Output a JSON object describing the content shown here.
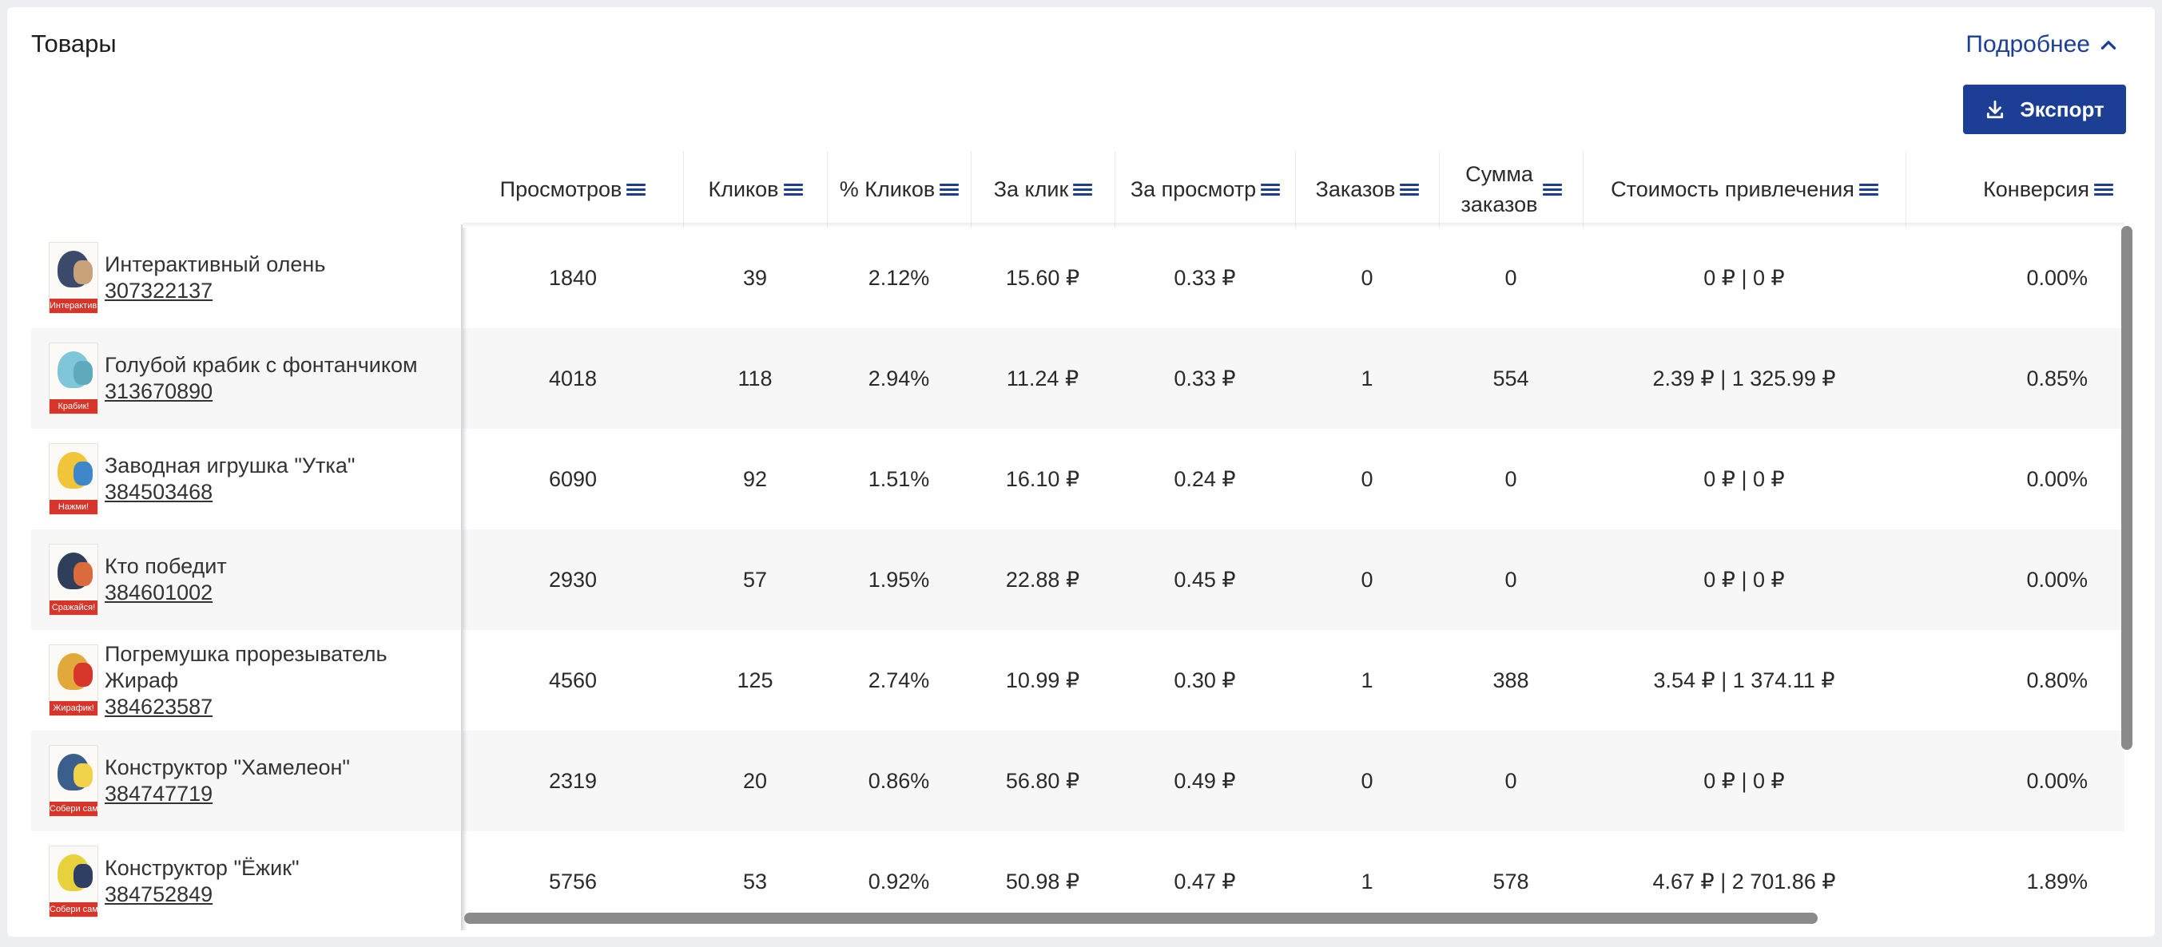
{
  "header": {
    "title": "Товары",
    "more_link": "Подробнее",
    "export_button": "Экспорт"
  },
  "columns": [
    {
      "label": "Просмотров"
    },
    {
      "label": "Кликов"
    },
    {
      "label": "% Кликов"
    },
    {
      "label": "За клик"
    },
    {
      "label": "За просмотр"
    },
    {
      "label": "Заказов"
    },
    {
      "label": "Сумма заказов"
    },
    {
      "label": "Стоимость привлечения"
    },
    {
      "label": "Конверсия"
    }
  ],
  "rows": [
    {
      "name": "Интерактивный олень",
      "sku": "307322137",
      "thumb_band": "Интерактивный",
      "views": "1840",
      "clicks": "39",
      "ctr": "2.12%",
      "per_click": "15.60 ₽",
      "per_view": "0.33 ₽",
      "orders": "0",
      "orders_sum": "0",
      "acq_cost": "0 ₽ | 0 ₽",
      "conversion": "0.00%"
    },
    {
      "name": "Голубой крабик с фонтанчиком",
      "sku": "313670890",
      "thumb_band": "Крабик!",
      "views": "4018",
      "clicks": "118",
      "ctr": "2.94%",
      "per_click": "11.24 ₽",
      "per_view": "0.33 ₽",
      "orders": "1",
      "orders_sum": "554",
      "acq_cost": "2.39 ₽ | 1 325.99 ₽",
      "conversion": "0.85%"
    },
    {
      "name": "Заводная игрушка \"Утка\"",
      "sku": "384503468",
      "thumb_band": "Нажми!",
      "views": "6090",
      "clicks": "92",
      "ctr": "1.51%",
      "per_click": "16.10 ₽",
      "per_view": "0.24 ₽",
      "orders": "0",
      "orders_sum": "0",
      "acq_cost": "0 ₽ | 0 ₽",
      "conversion": "0.00%"
    },
    {
      "name": "Кто победит",
      "sku": "384601002",
      "thumb_band": "Сражайся!",
      "views": "2930",
      "clicks": "57",
      "ctr": "1.95%",
      "per_click": "22.88 ₽",
      "per_view": "0.45 ₽",
      "orders": "0",
      "orders_sum": "0",
      "acq_cost": "0 ₽ | 0 ₽",
      "conversion": "0.00%"
    },
    {
      "name": "Погремушка прорезыватель Жираф",
      "sku": "384623587",
      "thumb_band": "Жирафик!",
      "views": "4560",
      "clicks": "125",
      "ctr": "2.74%",
      "per_click": "10.99 ₽",
      "per_view": "0.30 ₽",
      "orders": "1",
      "orders_sum": "388",
      "acq_cost": "3.54 ₽ | 1 374.11 ₽",
      "conversion": "0.80%"
    },
    {
      "name": "Конструктор \"Хамелеон\"",
      "sku": "384747719",
      "thumb_band": "Собери сам!",
      "views": "2319",
      "clicks": "20",
      "ctr": "0.86%",
      "per_click": "56.80 ₽",
      "per_view": "0.49 ₽",
      "orders": "0",
      "orders_sum": "0",
      "acq_cost": "0 ₽ | 0 ₽",
      "conversion": "0.00%"
    },
    {
      "name": "Конструктор \"Ёжик\"",
      "sku": "384752849",
      "thumb_band": "Собери сам!",
      "views": "5756",
      "clicks": "53",
      "ctr": "0.92%",
      "per_click": "50.98 ₽",
      "per_view": "0.47 ₽",
      "orders": "1",
      "orders_sum": "578",
      "acq_cost": "4.67 ₽ | 2 701.86 ₽",
      "conversion": "1.89%"
    }
  ],
  "colors": {
    "accent": "#1c3f95",
    "thumb_band": "#d8352a",
    "row_alt": "#f7f7f8"
  },
  "icons": {
    "more_link": "chevron-up-icon",
    "export_button": "download-icon",
    "column_menu": "menu-icon"
  }
}
